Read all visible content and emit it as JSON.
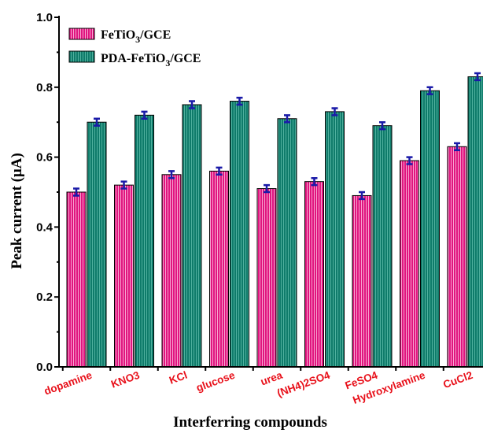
{
  "chart_data": {
    "type": "bar",
    "xlabel": "Interferring compounds",
    "ylabel": "Peak current (μA)",
    "ylim": [
      0.0,
      1.0
    ],
    "yticks": [
      "0.0",
      "0.2",
      "0.4",
      "0.6",
      "0.8",
      "1.0"
    ],
    "categories": [
      "dopamine",
      "KNO3",
      "KCl",
      "glucose",
      "urea",
      "(NH4)2SO4",
      "FeSO4",
      "Hydroxylamine",
      "CuCl2"
    ],
    "series": [
      {
        "name_parts": [
          "FeTiO",
          "3",
          "/GCE"
        ],
        "color": "#e0157f",
        "hatch": "#f7a3cf",
        "values": [
          0.5,
          0.52,
          0.55,
          0.56,
          0.51,
          0.53,
          0.49,
          0.59,
          0.63
        ],
        "errors": [
          0.01,
          0.01,
          0.01,
          0.01,
          0.01,
          0.01,
          0.01,
          0.01,
          0.01
        ]
      },
      {
        "name_parts": [
          "PDA-FeTiO",
          "3",
          "/GCE"
        ],
        "color": "#0f7b6a",
        "hatch": "#4fb09e",
        "values": [
          0.7,
          0.72,
          0.75,
          0.76,
          0.71,
          0.73,
          0.69,
          0.79,
          0.83
        ],
        "errors": [
          0.01,
          0.01,
          0.01,
          0.01,
          0.01,
          0.01,
          0.01,
          0.01,
          0.01
        ]
      }
    ],
    "error_bar_color": "#1a1aa8",
    "legend_position": "top-left",
    "grid": false
  }
}
